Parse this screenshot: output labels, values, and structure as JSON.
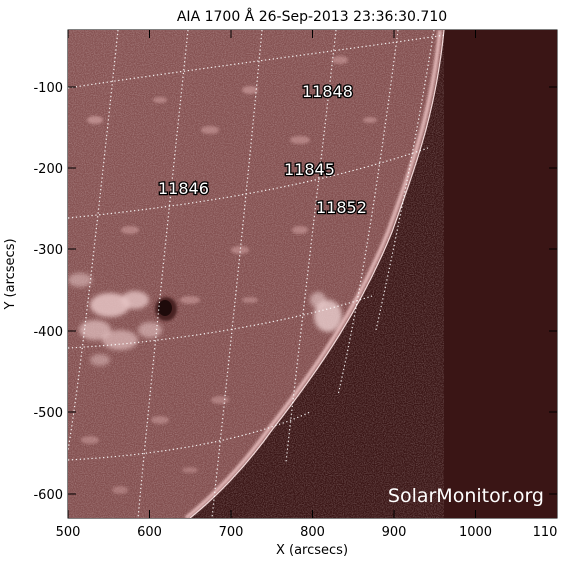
{
  "title": "AIA 1700 Å 26-Sep-2013 23:36:30.710",
  "xlabel": "X (arcsecs)",
  "ylabel": "Y (arcsecs)",
  "x_ticks": [
    "500",
    "600",
    "700",
    "800",
    "900",
    "1000",
    "110"
  ],
  "y_ticks": [
    "-100",
    "-200",
    "-300",
    "-400",
    "-500",
    "-600"
  ],
  "active_regions": [
    "11848",
    "11845",
    "11846",
    "11852"
  ],
  "watermark": "SolarMonitor.org",
  "colors": {
    "disk": "#7f4c4c",
    "limb_glow": "#f0c6c6",
    "space": "#140606",
    "grid": "#ffffff",
    "sunspot": "#1e0a0a"
  }
}
